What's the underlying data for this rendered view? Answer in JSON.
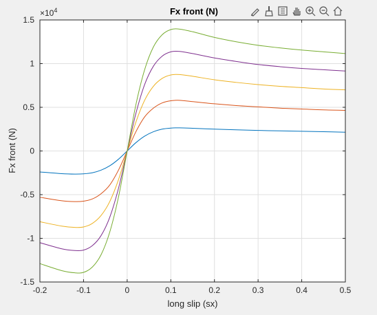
{
  "toolbar": {
    "buttons": [
      {
        "name": "edit-plot-icon"
      },
      {
        "name": "brush-icon"
      },
      {
        "name": "legend-icon"
      },
      {
        "name": "pan-icon"
      },
      {
        "name": "zoom-in-icon"
      },
      {
        "name": "zoom-out-icon"
      },
      {
        "name": "home-icon"
      }
    ]
  },
  "chart_data": {
    "type": "line",
    "title": "Fx front (N)",
    "xlabel": "long slip (sx)",
    "ylabel": "Fx front (N)",
    "y_exponent_label": "×10",
    "y_exponent_power": "4",
    "xlim": [
      -0.2,
      0.5
    ],
    "ylim": [
      -15000,
      15000
    ],
    "grid": true,
    "x_ticks": [
      -0.2,
      -0.1,
      0,
      0.1,
      0.2,
      0.3,
      0.4,
      0.5
    ],
    "x_tick_labels": [
      "-0.2",
      "-0.1",
      "0",
      "0.1",
      "0.2",
      "0.3",
      "0.4",
      "0.5"
    ],
    "y_ticks": [
      -15000,
      -10000,
      -5000,
      0,
      5000,
      10000,
      15000
    ],
    "y_tick_labels": [
      "-1.5",
      "-1",
      "-0.5",
      "0",
      "0.5",
      "1",
      "1.5"
    ],
    "x": [
      -0.2,
      -0.15,
      -0.12,
      -0.1,
      -0.08,
      -0.06,
      -0.04,
      -0.02,
      0,
      0.02,
      0.04,
      0.06,
      0.08,
      0.1,
      0.12,
      0.15,
      0.2,
      0.25,
      0.3,
      0.35,
      0.4,
      0.45,
      0.5
    ],
    "series": [
      {
        "color": "#0072bd",
        "values": [
          -2400,
          -2600,
          -2650,
          -2620,
          -2500,
          -2200,
          -1700,
          -950,
          0,
          950,
          1700,
          2200,
          2500,
          2620,
          2650,
          2600,
          2500,
          2420,
          2350,
          2300,
          2250,
          2200,
          2150
        ]
      },
      {
        "color": "#d95319",
        "values": [
          -5300,
          -5700,
          -5800,
          -5750,
          -5500,
          -4900,
          -3900,
          -2200,
          0,
          2200,
          3900,
          4900,
          5500,
          5750,
          5800,
          5650,
          5400,
          5200,
          5050,
          4900,
          4800,
          4700,
          4650
        ]
      },
      {
        "color": "#edb120",
        "values": [
          -8100,
          -8600,
          -8750,
          -8700,
          -8300,
          -7400,
          -5800,
          -3300,
          0,
          3300,
          5800,
          7400,
          8300,
          8700,
          8750,
          8550,
          8150,
          7850,
          7600,
          7400,
          7250,
          7100,
          7000
        ]
      },
      {
        "color": "#7e2f8e",
        "values": [
          -10500,
          -11200,
          -11400,
          -11350,
          -10850,
          -9700,
          -7600,
          -4300,
          0,
          4300,
          7600,
          9700,
          10850,
          11350,
          11400,
          11150,
          10650,
          10250,
          9900,
          9650,
          9450,
          9300,
          9150
        ]
      },
      {
        "color": "#77ac30",
        "values": [
          -12900,
          -13700,
          -13950,
          -13900,
          -13300,
          -11900,
          -9300,
          -5300,
          0,
          5300,
          9300,
          11900,
          13300,
          13900,
          13950,
          13650,
          13000,
          12500,
          12100,
          11800,
          11550,
          11350,
          11150
        ]
      }
    ]
  }
}
